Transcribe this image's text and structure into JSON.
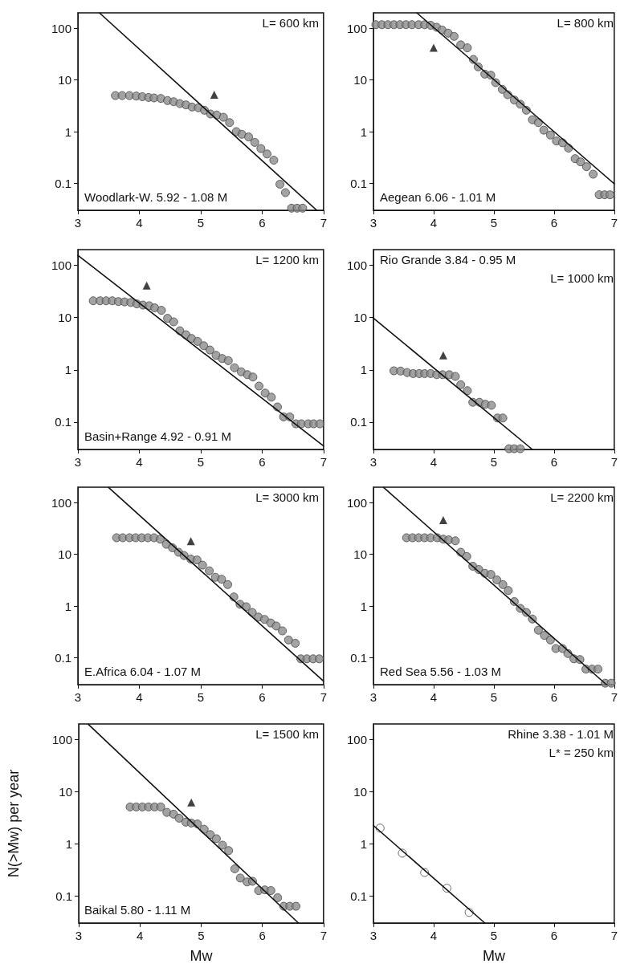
{
  "chart_data": [
    {
      "type": "scatter",
      "log": "y",
      "marker": "circle",
      "xlim": [
        3,
        7
      ],
      "xticks": [
        3,
        4,
        5,
        6,
        7
      ],
      "ylim": [
        0.03,
        200
      ],
      "yticks": [
        0.1,
        1,
        10,
        100
      ],
      "annotations": [
        "L= 600 km",
        "Woodlark-W. 5.92 - 1.08 M"
      ],
      "series": [
        {
          "type": "scatter",
          "color": "#8c8c8c",
          "x": [
            3.61,
            3.72,
            3.84,
            3.95,
            4.05,
            4.15,
            4.24,
            4.35,
            4.46,
            4.56,
            4.66,
            4.76,
            4.86,
            4.96,
            5.06,
            5.16,
            5.26,
            5.37,
            5.47,
            5.58,
            5.67,
            5.78,
            5.88,
            5.98,
            6.08,
            6.19,
            6.29,
            6.38,
            6.48,
            6.57,
            6.66
          ],
          "values": [
            5.0,
            5.0,
            5.0,
            4.9,
            4.75,
            4.6,
            4.5,
            4.4,
            4.0,
            3.8,
            3.5,
            3.3,
            3.0,
            2.9,
            2.6,
            2.2,
            2.1,
            1.9,
            1.5,
            1.0,
            0.89,
            0.79,
            0.62,
            0.47,
            0.37,
            0.28,
            0.096,
            0.066,
            0.033,
            0.033,
            0.033
          ]
        },
        {
          "type": "scatter",
          "marker": "triangle",
          "color": "#111111",
          "x": [
            5.22
          ],
          "values": [
            5.2
          ]
        },
        {
          "type": "line",
          "marker": "none",
          "color": "#111111",
          "x": [
            3.35,
            6.89
          ],
          "values": [
            200,
            0.03
          ]
        }
      ]
    },
    {
      "type": "scatter",
      "log": "y",
      "marker": "circle",
      "xlim": [
        3,
        7
      ],
      "xticks": [
        3,
        4,
        5,
        6,
        7
      ],
      "ylim": [
        0.03,
        200
      ],
      "yticks": [
        0.1,
        1,
        10,
        100
      ],
      "annotations": [
        "L= 800 km",
        "Aegean 6.06 - 1.01 M"
      ],
      "series": [
        {
          "type": "scatter",
          "color": "#8c8c8c",
          "x": [
            3.04,
            3.14,
            3.24,
            3.34,
            3.44,
            3.54,
            3.64,
            3.75,
            3.85,
            3.95,
            4.05,
            4.14,
            4.24,
            4.34,
            4.45,
            4.56,
            4.66,
            4.74,
            4.85,
            4.95,
            5.03,
            5.14,
            5.23,
            5.34,
            5.44,
            5.54,
            5.64,
            5.74,
            5.83,
            5.94,
            6.04,
            6.14,
            6.24,
            6.35,
            6.44,
            6.54,
            6.65,
            6.75,
            6.84,
            6.93
          ],
          "values": [
            118,
            118,
            118,
            118,
            118,
            118,
            118,
            118,
            118,
            115,
            105,
            93,
            81,
            70,
            48,
            42,
            25,
            18,
            13,
            12.4,
            8.9,
            6.6,
            5.2,
            4.1,
            3.4,
            2.6,
            1.7,
            1.5,
            1.07,
            0.86,
            0.66,
            0.61,
            0.48,
            0.3,
            0.26,
            0.21,
            0.15,
            0.06,
            0.06,
            0.06
          ]
        },
        {
          "type": "scatter",
          "marker": "triangle",
          "color": "#111111",
          "x": [
            4.0
          ],
          "values": [
            42
          ]
        },
        {
          "type": "line",
          "marker": "none",
          "color": "#111111",
          "x": [
            3.72,
            7
          ],
          "values": [
            200,
            0.098
          ]
        }
      ]
    },
    {
      "type": "scatter",
      "log": "y",
      "marker": "circle",
      "xlim": [
        3,
        7
      ],
      "xticks": [
        3,
        4,
        5,
        6,
        7
      ],
      "ylim": [
        0.03,
        200
      ],
      "yticks": [
        0.1,
        1,
        10,
        100
      ],
      "annotations": [
        "L= 1200 km",
        "Basin+Range 4.92 - 0.91 M"
      ],
      "series": [
        {
          "type": "scatter",
          "color": "#8c8c8c",
          "x": [
            3.25,
            3.36,
            3.46,
            3.56,
            3.66,
            3.76,
            3.86,
            3.96,
            4.06,
            4.16,
            4.25,
            4.36,
            4.46,
            4.56,
            4.66,
            4.76,
            4.85,
            4.95,
            5.05,
            5.15,
            5.25,
            5.35,
            5.45,
            5.55,
            5.66,
            5.76,
            5.85,
            5.95,
            6.05,
            6.15,
            6.25,
            6.35,
            6.45,
            6.55,
            6.64,
            6.75,
            6.84,
            6.94
          ],
          "values": [
            21,
            21,
            21,
            21,
            20.3,
            20,
            19.5,
            18.3,
            17.4,
            16.9,
            15.4,
            13.8,
            9.7,
            8.3,
            5.6,
            4.7,
            4.0,
            3.5,
            2.9,
            2.4,
            1.9,
            1.65,
            1.5,
            1.1,
            0.92,
            0.81,
            0.73,
            0.49,
            0.36,
            0.3,
            0.195,
            0.126,
            0.126,
            0.093,
            0.093,
            0.093,
            0.093,
            0.093
          ]
        },
        {
          "type": "scatter",
          "marker": "triangle",
          "color": "#111111",
          "x": [
            4.12
          ],
          "values": [
            41
          ]
        },
        {
          "type": "line",
          "marker": "none",
          "color": "#111111",
          "x": [
            3,
            7
          ],
          "values": [
            155,
            0.035
          ]
        }
      ]
    },
    {
      "type": "scatter",
      "log": "y",
      "marker": "circle",
      "xlim": [
        3,
        7
      ],
      "xticks": [
        3,
        4,
        5,
        6,
        7
      ],
      "ylim": [
        0.03,
        200
      ],
      "yticks": [
        0.1,
        1,
        10,
        100
      ],
      "annotations": [
        "Rio Grande 3.84 - 0.95 M",
        "L= 1000 km"
      ],
      "series": [
        {
          "type": "scatter",
          "color": "#8c8c8c",
          "x": [
            3.34,
            3.45,
            3.56,
            3.66,
            3.76,
            3.85,
            3.95,
            4.05,
            4.15,
            4.26,
            4.36,
            4.45,
            4.56,
            4.65,
            4.76,
            4.86,
            4.96,
            5.06,
            5.15,
            5.25,
            5.34,
            5.44
          ],
          "values": [
            0.96,
            0.95,
            0.89,
            0.85,
            0.85,
            0.85,
            0.85,
            0.81,
            0.81,
            0.81,
            0.75,
            0.52,
            0.4,
            0.24,
            0.24,
            0.22,
            0.21,
            0.12,
            0.12,
            0.031,
            0.031,
            0.031
          ]
        },
        {
          "type": "scatter",
          "marker": "triangle",
          "color": "#111111",
          "x": [
            4.16
          ],
          "values": [
            1.9
          ]
        },
        {
          "type": "line",
          "marker": "none",
          "color": "#111111",
          "x": [
            3,
            5.64
          ],
          "values": [
            9.8,
            0.03
          ]
        }
      ]
    },
    {
      "type": "scatter",
      "log": "y",
      "marker": "circle",
      "xlim": [
        3,
        7
      ],
      "xticks": [
        3,
        4,
        5,
        6,
        7
      ],
      "ylim": [
        0.03,
        200
      ],
      "yticks": [
        0.1,
        1,
        10,
        100
      ],
      "annotations": [
        "L= 3000 km",
        "E.Africa 6.04 - 1.07 M"
      ],
      "series": [
        {
          "type": "scatter",
          "color": "#8c8c8c",
          "x": [
            3.63,
            3.73,
            3.84,
            3.94,
            4.04,
            4.14,
            4.24,
            4.34,
            4.44,
            4.54,
            4.64,
            4.73,
            4.84,
            4.94,
            5.03,
            5.14,
            5.24,
            5.34,
            5.44,
            5.54,
            5.64,
            5.74,
            5.84,
            5.94,
            6.04,
            6.14,
            6.23,
            6.33,
            6.43,
            6.54,
            6.63,
            6.73,
            6.83,
            6.93
          ],
          "values": [
            21,
            21,
            21,
            21,
            21,
            21,
            21,
            19.7,
            15.7,
            13.4,
            11,
            9.5,
            8.1,
            7.8,
            6.2,
            4.8,
            3.6,
            3.3,
            2.6,
            1.5,
            1.08,
            0.97,
            0.75,
            0.61,
            0.55,
            0.47,
            0.41,
            0.33,
            0.22,
            0.19,
            0.095,
            0.095,
            0.095,
            0.095
          ]
        },
        {
          "type": "scatter",
          "marker": "triangle",
          "color": "#111111",
          "x": [
            4.84
          ],
          "values": [
            18
          ]
        },
        {
          "type": "line",
          "marker": "none",
          "color": "#111111",
          "x": [
            3.5,
            7
          ],
          "values": [
            197,
            0.035
          ]
        }
      ]
    },
    {
      "type": "scatter",
      "log": "y",
      "marker": "circle",
      "xlim": [
        3,
        7
      ],
      "xticks": [
        3,
        4,
        5,
        6,
        7
      ],
      "ylim": [
        0.03,
        200
      ],
      "yticks": [
        0.1,
        1,
        10,
        100
      ],
      "annotations": [
        "L= 2200 km",
        "Red Sea 5.56 - 1.03 M"
      ],
      "series": [
        {
          "type": "scatter",
          "color": "#8c8c8c",
          "x": [
            3.55,
            3.65,
            3.75,
            3.85,
            3.95,
            4.06,
            4.16,
            4.25,
            4.36,
            4.45,
            4.55,
            4.65,
            4.75,
            4.85,
            4.95,
            5.05,
            5.15,
            5.24,
            5.34,
            5.44,
            5.54,
            5.64,
            5.74,
            5.84,
            5.94,
            6.03,
            6.14,
            6.23,
            6.33,
            6.43,
            6.53,
            6.63,
            6.73,
            6.85,
            6.95
          ],
          "values": [
            21,
            21,
            21,
            21,
            21,
            21,
            19.7,
            19.1,
            18.3,
            11,
            9.1,
            5.9,
            5.1,
            4.3,
            4.1,
            3.2,
            2.6,
            2.0,
            1.22,
            0.9,
            0.75,
            0.56,
            0.34,
            0.27,
            0.22,
            0.15,
            0.15,
            0.12,
            0.095,
            0.092,
            0.06,
            0.06,
            0.06,
            0.032,
            0.032
          ]
        },
        {
          "type": "scatter",
          "marker": "triangle",
          "color": "#111111",
          "x": [
            4.16
          ],
          "values": [
            46
          ]
        },
        {
          "type": "line",
          "marker": "none",
          "color": "#111111",
          "x": [
            3.17,
            6.87
          ],
          "values": [
            197,
            0.03
          ]
        }
      ]
    },
    {
      "type": "scatter",
      "log": "y",
      "marker": "circle",
      "xlim": [
        3,
        7
      ],
      "xticks": [
        3,
        4,
        5,
        6,
        7
      ],
      "ylim": [
        0.03,
        200
      ],
      "yticks": [
        0.1,
        1,
        10,
        100
      ],
      "xlabel": "Mw",
      "ylabel": "N(>Mw) per year",
      "annotations": [
        "L= 1500 km",
        "Baikal 5.80 - 1.11 M"
      ],
      "series": [
        {
          "type": "scatter",
          "color": "#8c8c8c",
          "x": [
            3.84,
            3.94,
            4.04,
            4.14,
            4.24,
            4.34,
            4.44,
            4.55,
            4.64,
            4.75,
            4.84,
            4.94,
            5.05,
            5.15,
            5.25,
            5.35,
            5.45,
            5.55,
            5.64,
            5.75,
            5.84,
            5.94,
            6.04,
            6.14,
            6.25,
            6.35,
            6.45,
            6.55
          ],
          "values": [
            5.1,
            5.1,
            5.1,
            5.1,
            5.1,
            5.1,
            4.0,
            3.7,
            3.1,
            2.6,
            2.5,
            2.4,
            1.9,
            1.5,
            1.25,
            0.94,
            0.74,
            0.33,
            0.22,
            0.185,
            0.19,
            0.126,
            0.13,
            0.126,
            0.092,
            0.063,
            0.063,
            0.063
          ]
        },
        {
          "type": "scatter",
          "marker": "triangle",
          "color": "#111111",
          "x": [
            4.84
          ],
          "values": [
            6.2
          ]
        },
        {
          "type": "line",
          "marker": "none",
          "color": "#111111",
          "x": [
            3.16,
            6.59
          ],
          "values": [
            196,
            0.03
          ]
        }
      ]
    },
    {
      "type": "scatter",
      "log": "y",
      "marker": "circle",
      "xlim": [
        3,
        7
      ],
      "xticks": [
        3,
        4,
        5,
        6,
        7
      ],
      "ylim": [
        0.03,
        200
      ],
      "yticks": [
        0.1,
        1,
        10,
        100
      ],
      "xlabel": "Mw",
      "annotations": [
        "Rhine 3.38 - 1.01 M",
        "L* = 250 km"
      ],
      "series": [
        {
          "type": "scatter",
          "color": "#ffffff",
          "x": [
            3.11,
            3.48,
            3.85,
            4.22,
            4.59
          ],
          "values": [
            2.0,
            0.66,
            0.28,
            0.14,
            0.048
          ]
        },
        {
          "type": "line",
          "marker": "none",
          "color": "#111111",
          "x": [
            3,
            4.85
          ],
          "values": [
            2.24,
            0.03
          ]
        }
      ]
    }
  ]
}
